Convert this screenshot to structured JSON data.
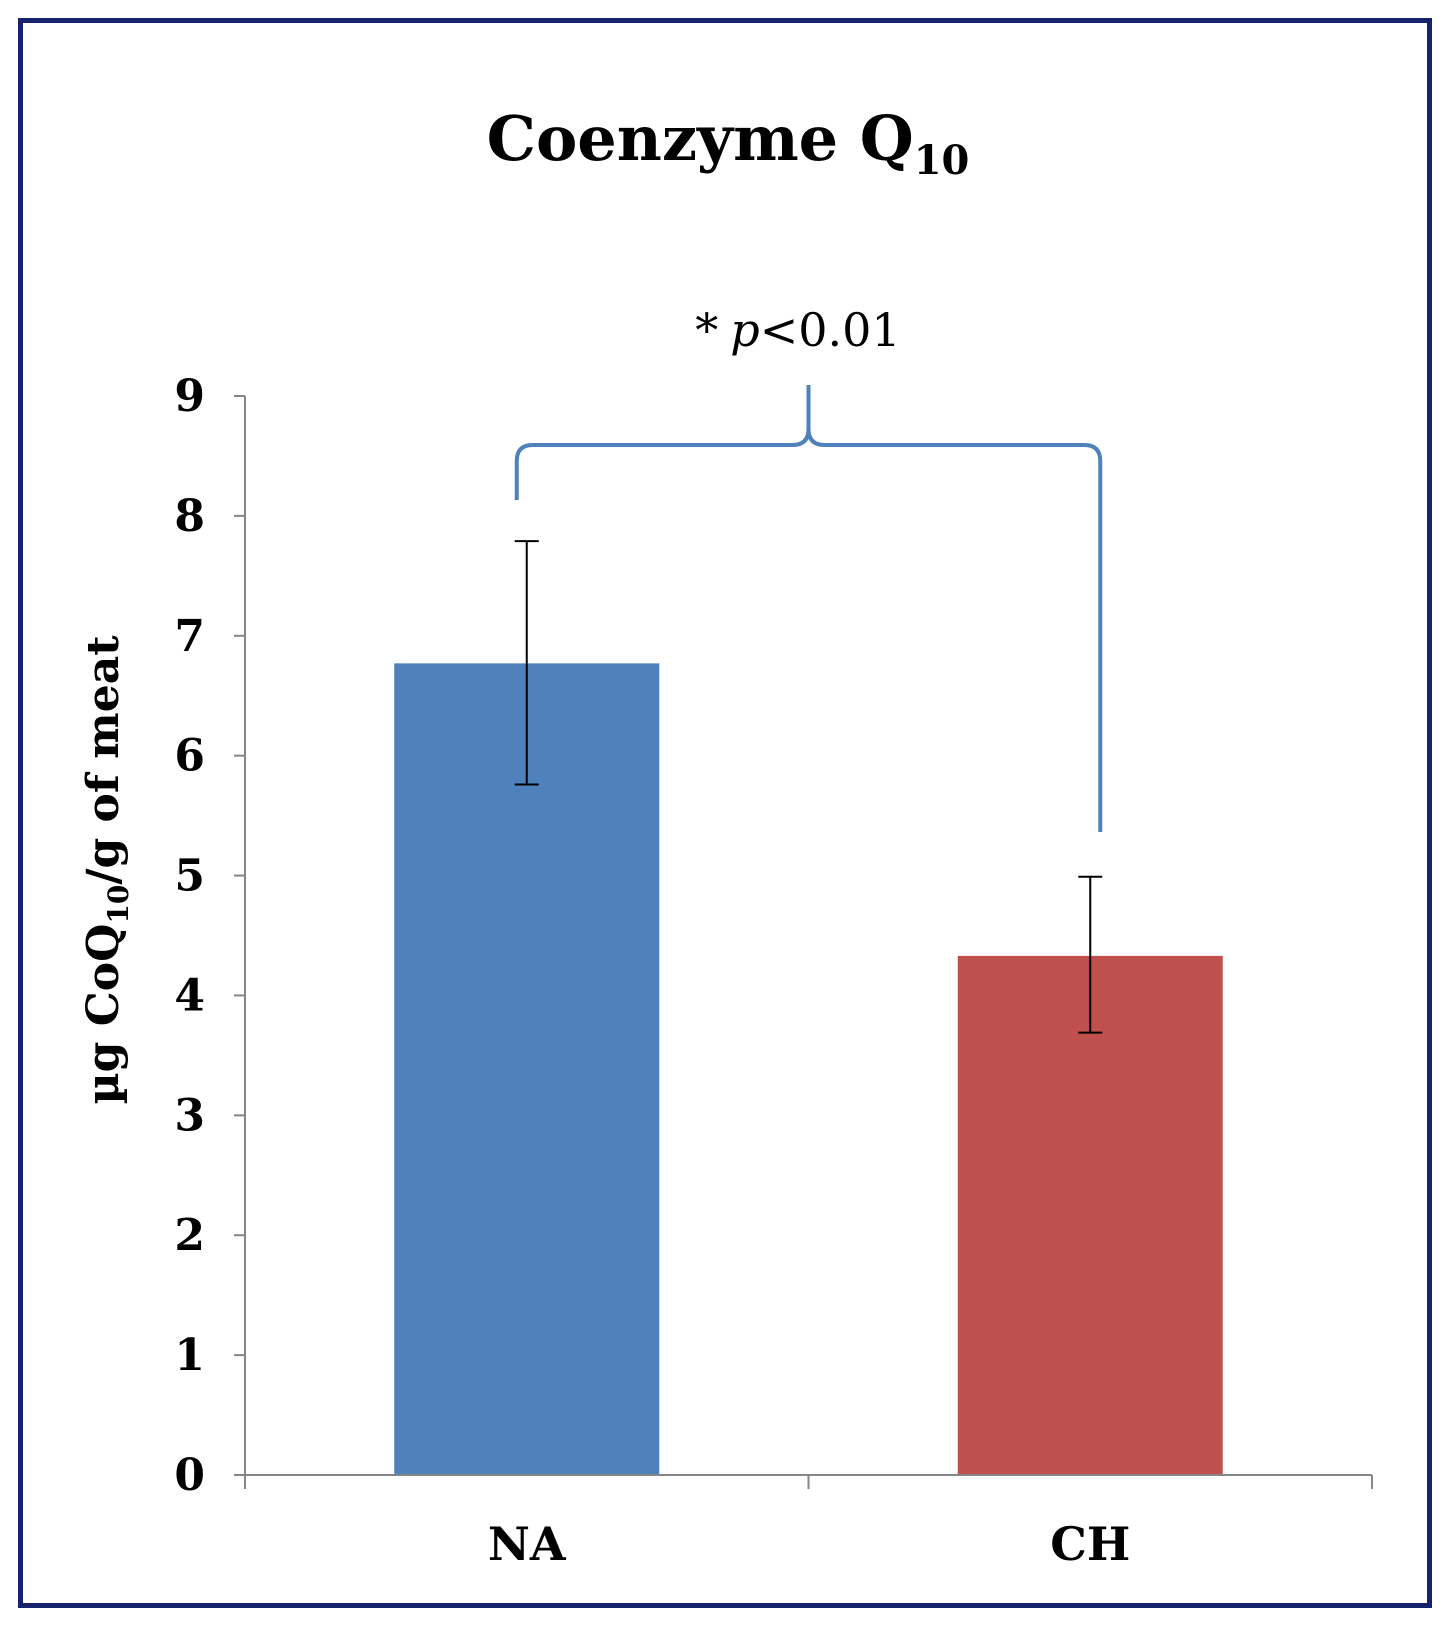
{
  "chart_data": {
    "type": "bar",
    "title": "Coenzyme Q",
    "title_subscript": "10",
    "ylabel_prefix": "µg CoQ",
    "ylabel_subscript": "10",
    "ylabel_suffix": "/g of meat",
    "xlabel": "",
    "categories": [
      "NA",
      "CH"
    ],
    "values": [
      6.77,
      4.33
    ],
    "error_upper": [
      7.79,
      4.99
    ],
    "error_lower": [
      5.76,
      3.69
    ],
    "colors": [
      "#4f81bd",
      "#c0504d"
    ],
    "ylim": [
      0,
      9
    ],
    "yticks": [
      "0",
      "1",
      "2",
      "3",
      "4",
      "5",
      "6",
      "7",
      "8",
      "9"
    ],
    "grid": false,
    "annotation": {
      "star": "*",
      "p_symbol": "p",
      "text": "<0.01",
      "bracket_color": "#4f81bd"
    }
  }
}
